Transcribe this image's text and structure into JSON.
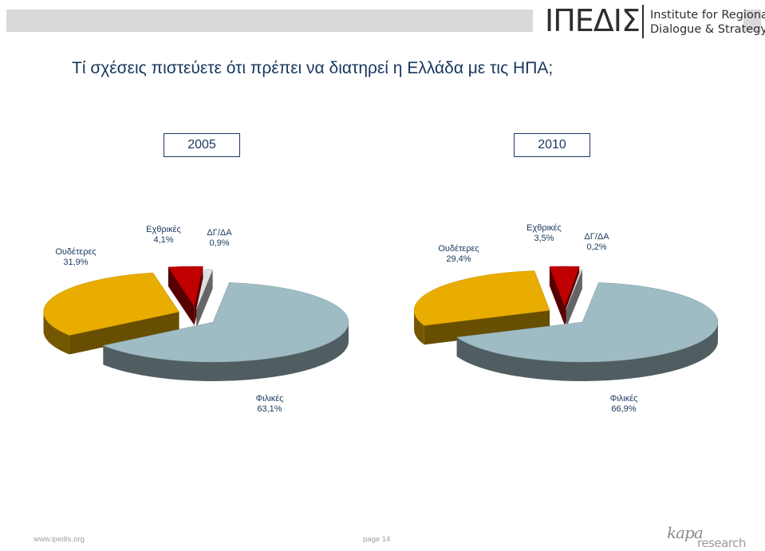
{
  "header": {
    "logo_main": "ΙΠΕΔΙΣ",
    "logo_line1": "Institute for Regional",
    "logo_line2": "Dialogue & Strategy"
  },
  "title": "Τί σχέσεις πιστεύετε ότι πρέπει να διατηρεί η Ελλάδα με τις ΗΠΑ;",
  "footer": {
    "url": "www.ipedis.org",
    "page": "page 14",
    "brand_a": "kapa",
    "brand_b": "research"
  },
  "colors": {
    "neutral": "#e8ad00",
    "hostile": "#c00000",
    "dk": "#e0e0e0",
    "friendly": "#9fbcc4"
  },
  "chart_data": [
    {
      "type": "pie",
      "year": "2005",
      "slices": [
        {
          "name": "Ουδέτερες",
          "value": 31.9,
          "label": "31,9%"
        },
        {
          "name": "Εχθρικές",
          "value": 4.1,
          "label": "4,1%"
        },
        {
          "name": "ΔΓ/ΔΑ",
          "value": 0.9,
          "label": "0,9%"
        },
        {
          "name": "Φιλικές",
          "value": 63.1,
          "label": "63,1%"
        }
      ]
    },
    {
      "type": "pie",
      "year": "2010",
      "slices": [
        {
          "name": "Ουδέτερες",
          "value": 29.4,
          "label": "29,4%"
        },
        {
          "name": "Εχθρικές",
          "value": 3.5,
          "label": "3,5%"
        },
        {
          "name": "ΔΓ/ΔΑ",
          "value": 0.2,
          "label": "0,2%"
        },
        {
          "name": "Φιλικές",
          "value": 66.9,
          "label": "66,9%"
        }
      ]
    }
  ]
}
